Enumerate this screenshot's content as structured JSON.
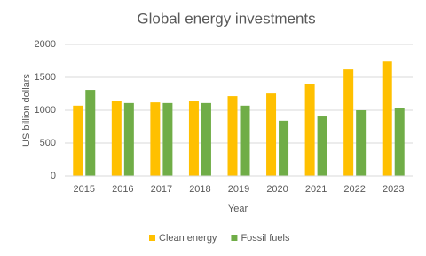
{
  "chart_data": {
    "type": "bar",
    "title": "Global energy investments",
    "x_label": "Year",
    "y_label": "US billion dollars",
    "categories": [
      "2015",
      "2016",
      "2017",
      "2018",
      "2019",
      "2020",
      "2021",
      "2022",
      "2023"
    ],
    "series": [
      {
        "name": "Clean energy",
        "color": "#ffc000",
        "values": [
          1070,
          1135,
          1120,
          1135,
          1215,
          1255,
          1405,
          1620,
          1740
        ]
      },
      {
        "name": "Fossil fuels",
        "color": "#70ad47",
        "values": [
          1310,
          1110,
          1110,
          1110,
          1070,
          840,
          905,
          1000,
          1040
        ]
      }
    ],
    "ylim": [
      0,
      2000
    ],
    "yticks": [
      0,
      500,
      1000,
      1500,
      2000
    ],
    "grid": true,
    "legend": "bottom"
  }
}
